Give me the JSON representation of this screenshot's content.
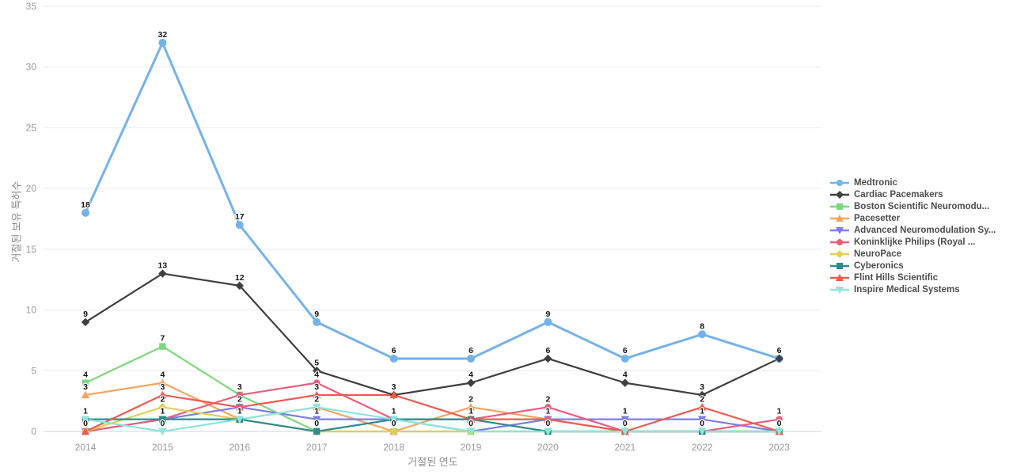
{
  "chart_data": {
    "type": "line",
    "title": "",
    "xlabel": "거절된 연도",
    "ylabel": "거절된 보유 특허수",
    "x": [
      "2014",
      "2015",
      "2016",
      "2017",
      "2018",
      "2019",
      "2020",
      "2021",
      "2022",
      "2023"
    ],
    "ylim": [
      0,
      35
    ],
    "yticks": [
      0,
      5,
      10,
      15,
      20,
      25,
      30,
      35
    ],
    "grid": true,
    "legend_position": "right",
    "point_labels_shown": true,
    "colors": {
      "gridline": "#ebebeb",
      "zeroline": "#ccd6e8",
      "tick_text": "#9a9a9a",
      "axis_title_text": "#8a8a8a",
      "legend_text": "#4d4d4d",
      "point_label_text": "#141414"
    },
    "series": [
      {
        "name": "Medtronic",
        "color": "#74b2e8",
        "marker": "circle",
        "values": [
          18,
          32,
          17,
          9,
          6,
          6,
          9,
          6,
          8,
          6
        ]
      },
      {
        "name": "Cardiac Pacemakers",
        "color": "#3f3f3f",
        "marker": "diamond",
        "values": [
          9,
          13,
          12,
          5,
          3,
          4,
          6,
          4,
          3,
          6
        ]
      },
      {
        "name": "Boston Scientific Neuromodu...",
        "color": "#7dd87d",
        "marker": "square",
        "values": [
          4,
          7,
          3,
          0,
          0,
          0,
          0,
          0,
          0,
          0
        ]
      },
      {
        "name": "Pacesetter",
        "color": "#f3a55f",
        "marker": "triangle-up",
        "values": [
          3,
          4,
          1,
          2,
          0,
          2,
          1,
          0,
          0,
          0
        ]
      },
      {
        "name": "Advanced Neuromodulation Sy...",
        "color": "#7d7de4",
        "marker": "triangle-down",
        "values": [
          0,
          1,
          2,
          1,
          1,
          0,
          1,
          1,
          1,
          0
        ]
      },
      {
        "name": "Koninklijke Philips (Royal ...",
        "color": "#e95d7e",
        "marker": "circle",
        "values": [
          0,
          1,
          3,
          4,
          1,
          1,
          2,
          0,
          0,
          1
        ]
      },
      {
        "name": "NeuroPace",
        "color": "#e2ce58",
        "marker": "diamond",
        "values": [
          0,
          2,
          1,
          0,
          0,
          0,
          0,
          0,
          0,
          0
        ]
      },
      {
        "name": "Cyberonics",
        "color": "#2e8b8b",
        "marker": "square",
        "values": [
          1,
          1,
          1,
          0,
          1,
          1,
          0,
          0,
          0,
          0
        ]
      },
      {
        "name": "Flint Hills Scientific",
        "color": "#ef5a50",
        "marker": "triangle-up",
        "values": [
          0,
          3,
          2,
          3,
          3,
          1,
          1,
          0,
          2,
          0
        ]
      },
      {
        "name": "Inspire Medical Systems",
        "color": "#8ce4dd",
        "marker": "triangle-down",
        "values": [
          1,
          0,
          1,
          2,
          1,
          0,
          0,
          0,
          0,
          0
        ]
      }
    ]
  }
}
